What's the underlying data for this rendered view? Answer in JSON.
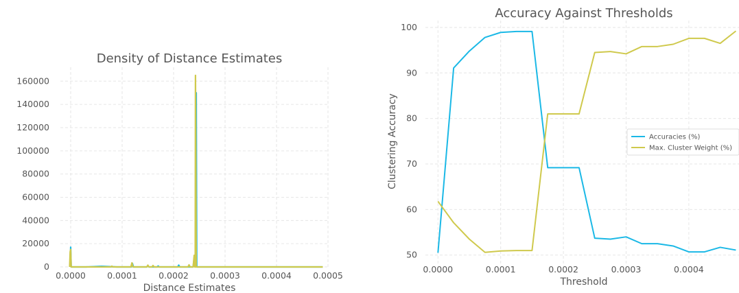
{
  "chart_data": [
    {
      "type": "area",
      "title": "Density of Distance Estimates",
      "xlabel": "Distance Estimates",
      "ylabel": "",
      "xlim": [
        -2e-05,
        0.0005
      ],
      "ylim": [
        0,
        172000
      ],
      "x_ticks": [
        0.0,
        0.0001,
        0.0002,
        0.0003,
        0.0004,
        0.0005
      ],
      "x_tick_labels": [
        "0.0000",
        "0.0001",
        "0.0002",
        "0.0003",
        "0.0004",
        "0.0005"
      ],
      "y_ticks": [
        0,
        20000,
        40000,
        60000,
        80000,
        100000,
        120000,
        140000,
        160000
      ],
      "y_tick_labels": [
        "0",
        "20000",
        "40000",
        "60000",
        "80000",
        "100000",
        "120000",
        "140000",
        "160000"
      ],
      "grid": true,
      "series": [
        {
          "color": "#1ab8e6",
          "points": [
            [
              -1e-06,
              0
            ],
            [
              0.0,
              17000
            ],
            [
              1e-06,
              0
            ],
            [
              3e-05,
              0
            ],
            [
              6e-05,
              500
            ],
            [
              9e-05,
              0
            ],
            [
              0.000118,
              0
            ],
            [
              0.00012,
              3000
            ],
            [
              0.000122,
              0
            ],
            [
              0.000148,
              0
            ],
            [
              0.00015,
              1000
            ],
            [
              0.000152,
              0
            ],
            [
              0.000168,
              0
            ],
            [
              0.00017,
              800
            ],
            [
              0.000172,
              0
            ],
            [
              0.000208,
              0
            ],
            [
              0.00021,
              1500
            ],
            [
              0.000212,
              0
            ],
            [
              0.000238,
              0
            ],
            [
              0.00024,
              8000
            ],
            [
              0.000241,
              9000
            ],
            [
              0.000242,
              0
            ],
            [
              0.000243,
              0
            ],
            [
              0.000244,
              150000
            ],
            [
              0.000245,
              0
            ],
            [
              0.00049,
              0
            ]
          ]
        },
        {
          "color": "#cfc94c",
          "points": [
            [
              -2e-06,
              0
            ],
            [
              -1e-06,
              13000
            ],
            [
              0.0,
              15000
            ],
            [
              1e-06,
              0
            ],
            [
              7.8e-05,
              0
            ],
            [
              8e-05,
              700
            ],
            [
              8.2e-05,
              0
            ],
            [
              0.000117,
              0
            ],
            [
              0.000119,
              3500
            ],
            [
              0.000121,
              0
            ],
            [
              0.000148,
              0
            ],
            [
              0.00015,
              1500
            ],
            [
              0.000152,
              0
            ],
            [
              0.000158,
              0
            ],
            [
              0.00016,
              1200
            ],
            [
              0.000162,
              0
            ],
            [
              0.000228,
              0
            ],
            [
              0.00023,
              1800
            ],
            [
              0.000232,
              0
            ],
            [
              0.000238,
              0
            ],
            [
              0.00024,
              10000
            ],
            [
              0.000241,
              0
            ],
            [
              0.000242,
              0
            ],
            [
              0.0002425,
              165000
            ],
            [
              0.000243,
              120000
            ],
            [
              0.000244,
              0
            ],
            [
              0.00049,
              0
            ]
          ]
        }
      ]
    },
    {
      "type": "line",
      "title": "Accuracy Against Thresholds",
      "xlabel": "Threshold",
      "ylabel": "Clustering Accuracy",
      "xlim": [
        -2e-05,
        0.00048
      ],
      "ylim": [
        48,
        101.5
      ],
      "x_ticks": [
        0.0,
        0.0001,
        0.0002,
        0.0003,
        0.0004
      ],
      "x_tick_labels": [
        "0.0000",
        "0.0001",
        "0.0002",
        "0.0003",
        "0.0004"
      ],
      "y_ticks": [
        50,
        60,
        70,
        80,
        90,
        100
      ],
      "y_tick_labels": [
        "50",
        "60",
        "70",
        "80",
        "90",
        "100"
      ],
      "grid": true,
      "legend_position": "right",
      "x": [
        0,
        2.5e-05,
        5e-05,
        7.5e-05,
        0.0001,
        0.000125,
        0.00015,
        0.000175,
        0.0002,
        0.000225,
        0.00025,
        0.000275,
        0.0003,
        0.000325,
        0.00035,
        0.000375,
        0.0004,
        0.000425,
        0.00045,
        0.000475
      ],
      "series": [
        {
          "name": "Accuracies (%)",
          "color": "#1ab8e6",
          "values": [
            50.5,
            91.1,
            94.8,
            97.8,
            98.9,
            99.1,
            99.1,
            69.2,
            69.2,
            69.2,
            53.7,
            53.5,
            54.0,
            52.5,
            52.5,
            52.0,
            50.7,
            50.7,
            51.7,
            51.1
          ]
        },
        {
          "name": "Max. Cluster Weight (%)",
          "color": "#cfc94c",
          "values": [
            61.8,
            57.1,
            53.5,
            50.6,
            50.9,
            51.0,
            51.0,
            81.0,
            81.0,
            81.0,
            94.5,
            94.7,
            94.2,
            95.8,
            95.8,
            96.3,
            97.6,
            97.6,
            96.5,
            99.2
          ]
        }
      ]
    }
  ]
}
